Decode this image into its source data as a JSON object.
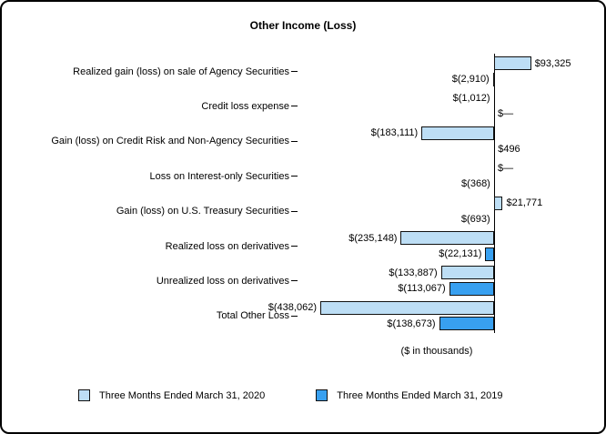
{
  "chart_data": {
    "type": "bar",
    "orientation": "horizontal",
    "title": "Other Income (Loss)",
    "xlabel": "($ in thousands)",
    "grid": false,
    "legend_position": "bottom",
    "categories": [
      "Realized gain (loss) on sale of Agency Securities",
      "Credit loss expense",
      "Gain (loss) on Credit Risk and Non-Agency Securities",
      "Loss on Interest-only Securities",
      "Gain (loss) on U.S. Treasury Securities",
      "Realized loss on derivatives",
      "Unrealized loss on derivatives",
      "Total Other Loss"
    ],
    "series": [
      {
        "name": "Three Months Ended March 31, 2020",
        "color": "#BDDEF5",
        "values": [
          93325,
          -1012,
          -183111,
          0,
          21771,
          -235148,
          -133887,
          -438062
        ],
        "labels": [
          "$93,325",
          "$(1,012)",
          "$(183,111)",
          "$—",
          "$21,771",
          "$(235,148)",
          "$(133,887)",
          "$(438,062)"
        ]
      },
      {
        "name": "Three Months Ended March 31, 2019",
        "color": "#38A0F0",
        "values": [
          -2910,
          0,
          496,
          -368,
          -693,
          -22131,
          -113067,
          -138673
        ],
        "labels": [
          "$(2,910)",
          "$—",
          "$496",
          "$(368)",
          "$(693)",
          "$(22,131)",
          "$(113,067)",
          "$(138,673)"
        ]
      }
    ]
  }
}
